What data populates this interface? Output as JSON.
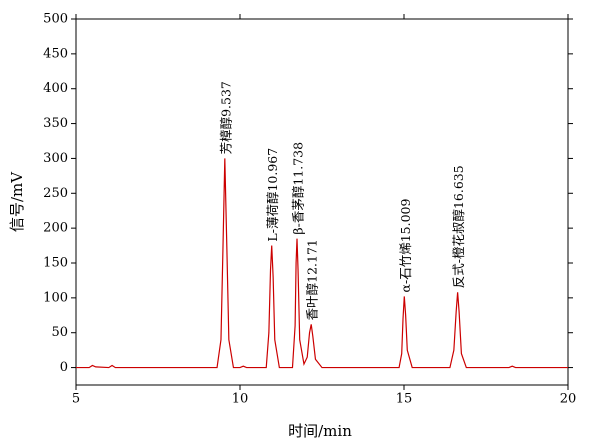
{
  "chart_data": {
    "type": "line",
    "x_label": "时间/min",
    "y_label": "信号/mV",
    "xlim": [
      5,
      20
    ],
    "xticks": [
      5,
      10,
      15,
      20
    ],
    "ylim": [
      -25,
      500
    ],
    "yticks": [
      0,
      50,
      100,
      150,
      200,
      250,
      300,
      350,
      400,
      450,
      500
    ],
    "series": [
      {
        "color": "#cc0000",
        "x": [
          5,
          5.4,
          5.5,
          5.6,
          6.0,
          6.1,
          6.2,
          6.4,
          9.3,
          9.42,
          9.48,
          9.537,
          9.6,
          9.66,
          9.8,
          10.0,
          10.1,
          10.2,
          10.8,
          10.88,
          10.93,
          10.967,
          11.01,
          11.06,
          11.2,
          11.6,
          11.68,
          11.71,
          11.738,
          11.77,
          11.82,
          11.95,
          12.05,
          12.12,
          12.171,
          12.22,
          12.3,
          12.5,
          14.3,
          14.5,
          14.85,
          14.93,
          14.97,
          15.009,
          15.05,
          15.1,
          15.25,
          16.4,
          16.52,
          16.59,
          16.635,
          16.68,
          16.75,
          16.9,
          18.2,
          18.3,
          18.4,
          20
        ],
        "values": [
          0,
          0,
          3,
          1,
          0,
          3,
          0,
          0,
          0,
          40,
          170,
          300,
          170,
          40,
          0,
          0,
          2,
          0,
          0,
          50,
          140,
          175,
          130,
          40,
          0,
          0,
          60,
          150,
          185,
          140,
          40,
          5,
          15,
          50,
          62,
          45,
          12,
          0,
          0,
          0,
          0,
          20,
          70,
          102,
          75,
          25,
          0,
          0,
          25,
          80,
          108,
          80,
          20,
          0,
          0,
          2,
          0,
          0
        ]
      }
    ],
    "annotations": [
      {
        "text": "芳樟醇9.537",
        "x": 9.537,
        "y": 300
      },
      {
        "text": "L-薄荷醇10.967",
        "x": 10.967,
        "y": 175
      },
      {
        "text": "β-香茅醇11.738",
        "x": 11.738,
        "y": 185
      },
      {
        "text": "香叶醇12.171",
        "x": 12.171,
        "y": 62
      },
      {
        "text": "α-石竹烯15.009",
        "x": 15.009,
        "y": 102
      },
      {
        "text": "反式-橙花叔醇16.635",
        "x": 16.635,
        "y": 108
      }
    ]
  }
}
